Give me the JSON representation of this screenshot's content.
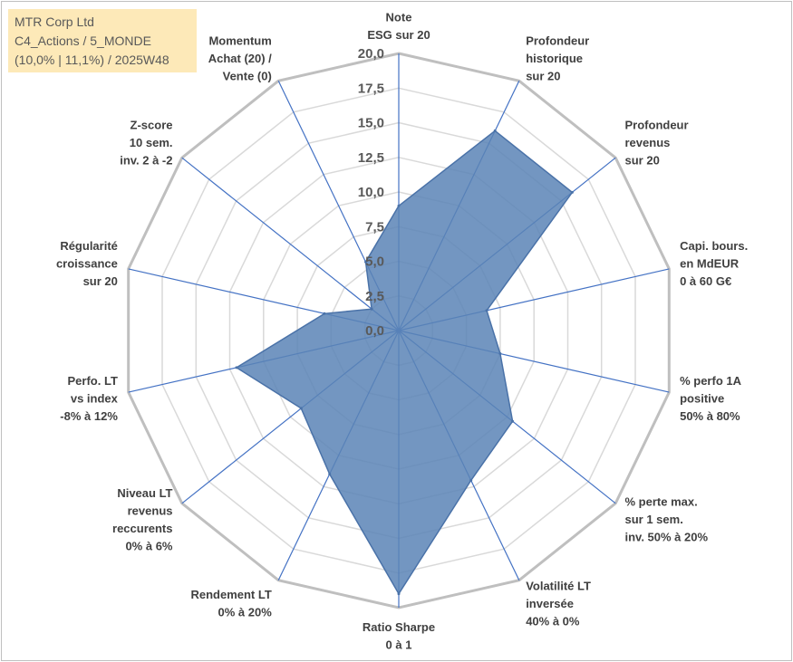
{
  "info_box": {
    "line1": "MTR Corp Ltd",
    "line2": "C4_Actions / 5_MONDE",
    "line3": "(10,0% | 11,1%) / 2025W48"
  },
  "chart_data": {
    "type": "radar",
    "title": "",
    "axes": [
      {
        "lines": [
          "Note",
          "ESG sur 20"
        ]
      },
      {
        "lines": [
          "Profondeur",
          "historique",
          "sur 20"
        ]
      },
      {
        "lines": [
          "Profondeur",
          "revenus",
          "sur 20"
        ]
      },
      {
        "lines": [
          "Capi. bours.",
          "en MdEUR",
          "0 à 60 G€"
        ]
      },
      {
        "lines": [
          "% perfo 1A",
          "positive",
          "50% à 80%"
        ]
      },
      {
        "lines": [
          "% perte max.",
          "sur 1 sem.",
          "inv. 50% à 20%"
        ]
      },
      {
        "lines": [
          "Volatilité LT",
          "inversée",
          "40% à 0%"
        ]
      },
      {
        "lines": [
          "Ratio Sharpe",
          "0 à 1"
        ]
      },
      {
        "lines": [
          "Rendement LT",
          "0% à 20%"
        ]
      },
      {
        "lines": [
          "Niveau LT",
          "revenus",
          "reccurents",
          "0% à 6%"
        ]
      },
      {
        "lines": [
          "Perfo. LT",
          "vs index",
          "-8% à 12%"
        ]
      },
      {
        "lines": [
          "Régularité",
          "croissance",
          "sur 20"
        ]
      },
      {
        "lines": [
          "Z-score",
          "10 sem.",
          "inv. 2 à -2"
        ]
      },
      {
        "lines": [
          "Momentum",
          "Achat (20) /",
          "Vente (0)"
        ]
      }
    ],
    "series": [
      {
        "name": "MTR Corp Ltd",
        "color": "#5b84b6",
        "values": [
          9.0,
          16.0,
          16.0,
          6.5,
          7.5,
          10.5,
          12.0,
          19.0,
          11.5,
          9.0,
          12.0,
          5.5,
          2.5,
          5.5
        ]
      }
    ],
    "rmin": 0,
    "rmax": 20,
    "tick_labels": [
      "0,0",
      "2,5",
      "5,0",
      "7,5",
      "10,0",
      "12,5",
      "15,0",
      "17,5",
      "20,0"
    ],
    "grid": true,
    "colors": {
      "grid": "#d9d9d9",
      "outer_grid": "#bfbfbf",
      "spokes": "#4472c4",
      "fill": "#5b84b6",
      "stroke": "#4a72a8"
    }
  }
}
